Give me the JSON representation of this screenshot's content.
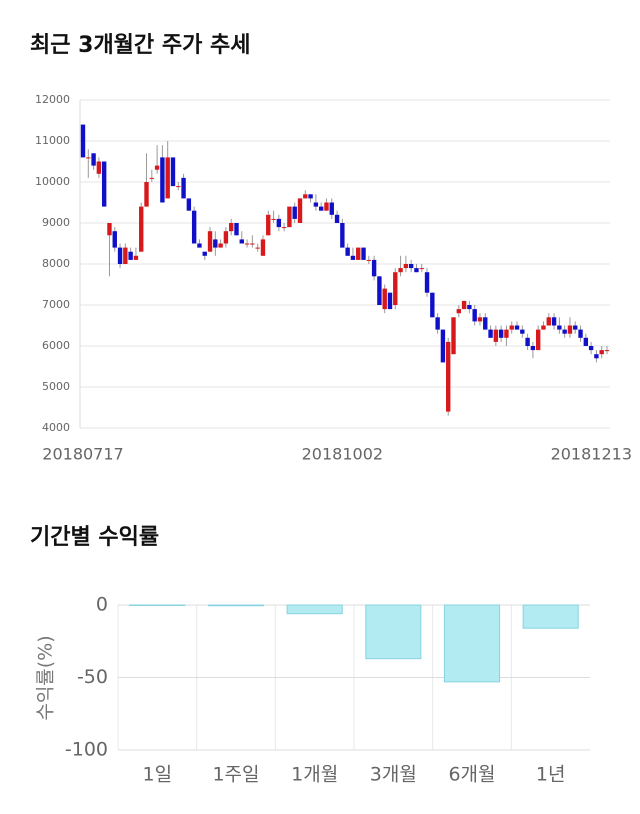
{
  "chart_data": [
    {
      "type": "candlestick",
      "title": "최근 3개월간 주가 추세",
      "categories": [
        "20180717",
        null,
        null,
        null,
        null,
        null,
        null,
        null,
        null,
        null,
        null,
        null,
        null,
        null,
        null,
        null,
        null,
        null,
        null,
        null,
        null,
        null,
        null,
        null,
        null,
        null,
        null,
        null,
        null,
        null,
        null,
        null,
        null,
        null,
        null,
        null,
        null,
        null,
        null,
        null,
        null,
        null,
        null,
        null,
        null,
        null,
        null,
        null,
        null,
        "20181002",
        null,
        null,
        null,
        null,
        null,
        null,
        null,
        null,
        null,
        null,
        null,
        null,
        null,
        null,
        null,
        null,
        null,
        null,
        null,
        null,
        null,
        null,
        null,
        null,
        null,
        null,
        null,
        null,
        null,
        null,
        null,
        null,
        null,
        null,
        null,
        null,
        null,
        null,
        null,
        null,
        null,
        null,
        null,
        null,
        null,
        null,
        null,
        null,
        null,
        "20181213"
      ],
      "open": [
        11400,
        10600,
        10700,
        10200,
        10500,
        8700,
        8800,
        8400,
        8000,
        8300,
        8100,
        8300,
        9400,
        10100,
        10300,
        10600,
        9600,
        10600,
        9900,
        10100,
        9600,
        9300,
        8500,
        8300,
        8300,
        8600,
        8400,
        8500,
        8800,
        9000,
        8600,
        8500,
        8500,
        8400,
        8200,
        8700,
        9100,
        9100,
        8900,
        8900,
        9400,
        9000,
        9600,
        9700,
        9500,
        9400,
        9300,
        9500,
        9200,
        9000,
        8400,
        8200,
        8100,
        8400,
        8100,
        8100,
        7700,
        6900,
        7300,
        7000,
        7800,
        7900,
        8000,
        7900,
        7900,
        7800,
        7300,
        6700,
        6400,
        4400,
        5800,
        6800,
        6900,
        7000,
        6900,
        6600,
        6700,
        6400,
        6100,
        6400,
        6200,
        6400,
        6500,
        6400,
        6200,
        6000,
        5900,
        6400,
        6500,
        6700,
        6500,
        6400,
        6300,
        6500,
        6400,
        6200,
        6000,
        5800,
        5800,
        5900
      ],
      "high": [
        11400,
        10800,
        10700,
        10600,
        10500,
        9000,
        8900,
        8500,
        8500,
        8400,
        8400,
        9500,
        10700,
        10300,
        10900,
        10900,
        11000,
        10600,
        10000,
        10200,
        9600,
        9400,
        8600,
        8300,
        8900,
        8800,
        8600,
        8900,
        9100,
        9000,
        8800,
        8600,
        8700,
        8500,
        8700,
        9300,
        9300,
        9200,
        9000,
        9400,
        9500,
        9600,
        9800,
        9700,
        9700,
        9500,
        9600,
        9600,
        9300,
        9100,
        8500,
        8400,
        8400,
        8400,
        8200,
        8200,
        7700,
        7500,
        7300,
        7900,
        8200,
        8200,
        8100,
        8000,
        8000,
        7900,
        7300,
        6800,
        6400,
        6200,
        6700,
        7000,
        7100,
        7100,
        7000,
        6800,
        6800,
        6500,
        6500,
        6500,
        6500,
        6600,
        6600,
        6500,
        6300,
        6100,
        6500,
        6600,
        6800,
        6800,
        6700,
        6500,
        6700,
        6600,
        6500,
        6300,
        6100,
        5900,
        6000,
        6000
      ],
      "low": [
        10600,
        10100,
        10300,
        10100,
        9400,
        7700,
        8300,
        7900,
        8000,
        8100,
        8100,
        8300,
        9400,
        10000,
        10200,
        9500,
        9600,
        9900,
        9800,
        9600,
        9300,
        8500,
        8400,
        8100,
        8300,
        8200,
        8400,
        8400,
        8700,
        8700,
        8500,
        8400,
        8400,
        8300,
        8200,
        8700,
        9000,
        8800,
        8800,
        8900,
        9000,
        9000,
        9600,
        9500,
        9300,
        9300,
        9300,
        9100,
        9000,
        8400,
        8200,
        8100,
        8100,
        8100,
        8000,
        7600,
        7000,
        6800,
        6900,
        6900,
        7700,
        7800,
        7800,
        7800,
        7800,
        7200,
        6700,
        6300,
        5600,
        4300,
        5800,
        6700,
        6900,
        6800,
        6500,
        6500,
        6400,
        6200,
        6000,
        6100,
        6000,
        6300,
        6400,
        6200,
        5900,
        5700,
        5900,
        6400,
        6500,
        6400,
        6300,
        6200,
        6200,
        6300,
        6100,
        6000,
        5800,
        5600,
        5700,
        5800
      ],
      "close": [
        10600,
        10600,
        10400,
        10500,
        9400,
        9000,
        8400,
        8000,
        8400,
        8100,
        8200,
        9400,
        10000,
        10100,
        10400,
        9500,
        10600,
        9900,
        9900,
        9600,
        9300,
        8500,
        8400,
        8200,
        8800,
        8400,
        8500,
        8800,
        9000,
        8700,
        8500,
        8500,
        8500,
        8400,
        8600,
        9200,
        9100,
        8900,
        8900,
        9400,
        9100,
        9600,
        9700,
        9600,
        9400,
        9300,
        9500,
        9200,
        9000,
        8400,
        8200,
        8100,
        8400,
        8100,
        8100,
        7700,
        7000,
        7400,
        6900,
        7800,
        7900,
        8000,
        7900,
        7800,
        7900,
        7300,
        6700,
        6400,
        5600,
        6100,
        6700,
        6900,
        7100,
        6900,
        6600,
        6700,
        6400,
        6200,
        6400,
        6200,
        6400,
        6500,
        6400,
        6300,
        6000,
        5900,
        6400,
        6500,
        6700,
        6500,
        6400,
        6300,
        6500,
        6400,
        6200,
        6000,
        5900,
        5700,
        5900,
        5900
      ],
      "up_color": "#d7191c",
      "down_color": "#1010c8",
      "wick_color": "#999999",
      "ylim": [
        4000,
        12000
      ],
      "yticks": [
        4000,
        5000,
        6000,
        7000,
        8000,
        9000,
        10000,
        11000,
        12000
      ],
      "grid": true
    },
    {
      "type": "bar",
      "title": "기간별 수익률",
      "y_label": "수익률(%)",
      "categories": [
        "1일",
        "1주일",
        "1개월",
        "3개월",
        "6개월",
        "1년"
      ],
      "values": [
        0,
        -0.5,
        -6,
        -37,
        -53,
        -16
      ],
      "color": "#b2ebf2",
      "edge_color": "#88d3df",
      "ylim": [
        -100,
        0
      ],
      "yticks": [
        0,
        -50,
        -100
      ],
      "grid": true
    }
  ]
}
